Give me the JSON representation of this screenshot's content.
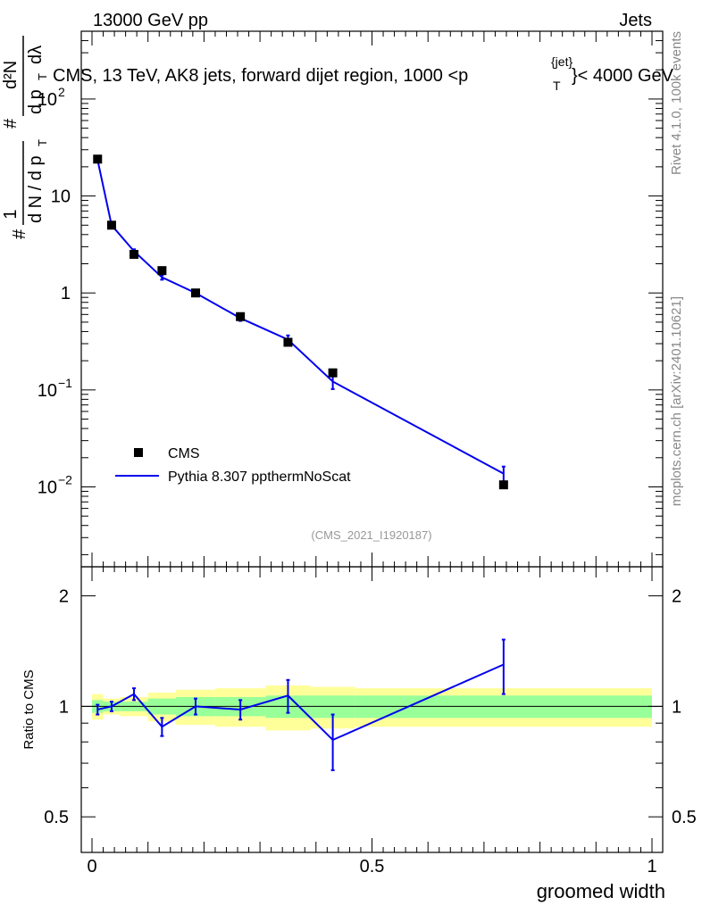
{
  "header": {
    "energy": "13000 GeV pp",
    "process": "Jets",
    "title_prefix": "CMS, 13 TeV, AK8 jets, forward dijet region, 1000 <p",
    "title_sup": "{jet}",
    "title_sub": "T",
    "title_suffix": "}< 4000 GeV"
  },
  "side": {
    "rivet": "Rivet 4.1.0,  100k events",
    "mcplots": "mcplots.cern.ch [arXiv:2401.10621]"
  },
  "analysis_id": "(CMS_2021_I1920187)",
  "ylabel_parts": {
    "frac_num": "1",
    "frac_den": "d N / d p",
    "sub_T": "T",
    "hash": "#",
    "d2N": "d²N",
    "dpT": "d p",
    "dlambda": "dλ"
  },
  "legend": {
    "data_label": "CMS",
    "mc_label": "Pythia 8.307 ppthermNoScat"
  },
  "colors": {
    "data": "#000000",
    "mc": "#0000ee",
    "band_inner": "#99ff99",
    "band_outer": "#ffff99"
  },
  "chart_data": {
    "type": "line",
    "xlabel": "groomed width",
    "ylabel": "# 1/(dN/dpT) # d²N/(dpT dλ)",
    "xlim": [
      0,
      1
    ],
    "ylim": [
      0.0015,
      500
    ],
    "yscale": "log",
    "ratio_ylabel": "Ratio to CMS",
    "ratio_ylim": [
      0.4,
      2.4
    ],
    "ratio_yscale": "log",
    "x_ticks": [
      {
        "v": 0,
        "label": "0"
      },
      {
        "v": 0.5,
        "label": "0.5"
      },
      {
        "v": 1,
        "label": "1"
      }
    ],
    "y_ticks": [
      {
        "v": 0.01,
        "base": "10",
        "exp": "−2"
      },
      {
        "v": 0.1,
        "base": "10",
        "exp": "−1"
      },
      {
        "v": 1,
        "base": "1",
        "exp": ""
      },
      {
        "v": 10,
        "base": "10",
        "exp": ""
      },
      {
        "v": 100,
        "base": "10",
        "exp": "2"
      }
    ],
    "ratio_ticks": [
      {
        "v": 0.5,
        "label": "0.5"
      },
      {
        "v": 1,
        "label": "1"
      },
      {
        "v": 2,
        "label": "2"
      }
    ],
    "bins": [
      0,
      0.02,
      0.05,
      0.1,
      0.15,
      0.22,
      0.31,
      0.39,
      0.47,
      1.0
    ],
    "series": [
      {
        "name": "CMS",
        "x": [
          0.01,
          0.035,
          0.075,
          0.125,
          0.185,
          0.265,
          0.35,
          0.43,
          0.735
        ],
        "values": [
          24.0,
          5.0,
          2.5,
          1.7,
          1.0,
          0.57,
          0.31,
          0.15,
          0.0105
        ]
      },
      {
        "name": "Pythia 8.307 ppthermNoScat",
        "x": [
          0.01,
          0.035,
          0.075,
          0.125,
          0.185,
          0.265,
          0.35,
          0.43,
          0.735
        ],
        "values": [
          23.5,
          5.0,
          2.7,
          1.45,
          1.0,
          0.55,
          0.33,
          0.122,
          0.0137
        ],
        "err_lo": [
          0.8,
          0.15,
          0.12,
          0.08,
          0.05,
          0.035,
          0.035,
          0.02,
          0.0025
        ],
        "err_hi": [
          0.8,
          0.15,
          0.12,
          0.08,
          0.05,
          0.035,
          0.035,
          0.02,
          0.0025
        ]
      }
    ],
    "ratio": {
      "mc": [
        0.98,
        1.0,
        1.08,
        0.88,
        1.0,
        0.98,
        1.07,
        0.81,
        1.3
      ],
      "mc_err": [
        0.03,
        0.03,
        0.04,
        0.05,
        0.05,
        0.06,
        0.11,
        0.14,
        0.22
      ],
      "band_inner": [
        0.04,
        0.03,
        0.03,
        0.05,
        0.06,
        0.06,
        0.07,
        0.07,
        0.07
      ],
      "band_outer": [
        0.08,
        0.05,
        0.06,
        0.09,
        0.11,
        0.12,
        0.14,
        0.13,
        0.12
      ]
    }
  }
}
